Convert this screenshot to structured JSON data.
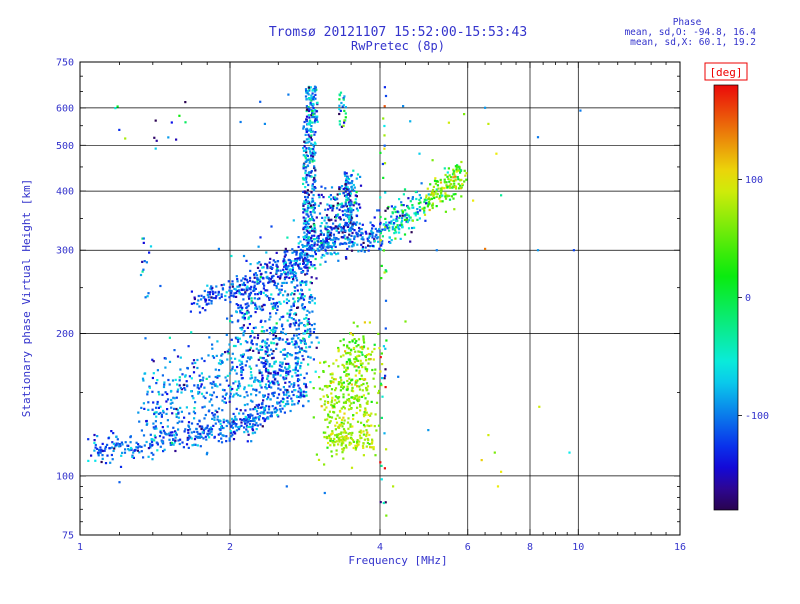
{
  "header": {
    "title": "Tromsø 20121107 15:52:00-15:53:43",
    "subtitle": "RwPretec (8p)",
    "stats_title": "Phase",
    "stats_line1": "mean, sd,O: -94.8, 16.4",
    "stats_line2": "mean, sd,X:  60.1, 19.2"
  },
  "colors": {
    "text": "#3333cc",
    "frame": "#000000",
    "deg_label": "#ee0000",
    "background": "#ffffff"
  },
  "colorbar": {
    "label": "[deg]",
    "ticks": [
      100,
      0,
      -100
    ],
    "min": -180,
    "max": 180
  },
  "chart_data": {
    "type": "scatter",
    "title": "Tromsø 20121107 15:52:00-15:53:43",
    "subtitle": "RwPretec (8p)",
    "xlabel": "Frequency [MHz]",
    "ylabel": "Stationary phase Virtual Height [km]",
    "xscale": "log",
    "yscale": "log",
    "xlim": [
      1,
      16
    ],
    "ylim": [
      75,
      750
    ],
    "x_major_ticks": [
      1,
      2,
      4,
      6,
      8,
      10,
      16
    ],
    "x_gridlines": [
      2,
      4,
      6,
      8,
      10
    ],
    "x_minor_ticks": [
      1.2,
      1.4,
      1.6,
      1.8,
      2.5,
      3,
      3.5,
      4.5,
      5,
      5.5,
      6.5,
      7,
      7.5,
      8.5,
      9,
      9.5,
      11,
      12,
      13,
      14,
      15
    ],
    "y_major_ticks": [
      75,
      100,
      200,
      300,
      400,
      500,
      600,
      750
    ],
    "y_gridlines": [
      100,
      200,
      300,
      400,
      500,
      600
    ],
    "y_minor_ticks": [
      80,
      85,
      90,
      95,
      150,
      250,
      350,
      450,
      550,
      650,
      700
    ],
    "color_variable": "phase [deg]",
    "legend": "colorbar right, rainbow, -180 to 180 deg",
    "clusters": [
      {
        "name": "e-trace-low",
        "kind": "band",
        "f1": 1.05,
        "h1": 112,
        "f2": 2.0,
        "h2": 126,
        "sf": 0.004,
        "sh": 0.015,
        "n": 260,
        "phase": -110,
        "psd": 25
      },
      {
        "name": "e-trace-high",
        "kind": "band",
        "f1": 2.0,
        "h1": 126,
        "f2": 2.85,
        "h2": 152,
        "sf": 0.004,
        "sh": 0.018,
        "n": 220,
        "phase": -105,
        "psd": 25
      },
      {
        "name": "spread-e-cloud",
        "kind": "band",
        "f1": 1.35,
        "h1": 142,
        "f2": 2.35,
        "h2": 170,
        "sf": 0.01,
        "sh": 0.05,
        "n": 380,
        "phase": -100,
        "psd": 30
      },
      {
        "name": "spread-e-cloud-2",
        "kind": "band",
        "f1": 2.3,
        "h1": 165,
        "f2": 2.95,
        "h2": 205,
        "sf": 0.008,
        "sh": 0.045,
        "n": 320,
        "phase": -100,
        "psd": 32
      },
      {
        "name": "mid-cloud",
        "kind": "band",
        "f1": 2.05,
        "h1": 215,
        "f2": 2.95,
        "h2": 275,
        "sf": 0.01,
        "sh": 0.05,
        "n": 340,
        "phase": -108,
        "psd": 35
      },
      {
        "name": "diagonal-ridge",
        "kind": "band",
        "f1": 1.68,
        "h1": 232,
        "f2": 2.55,
        "h2": 268,
        "sf": 0.004,
        "sh": 0.013,
        "n": 170,
        "phase": -118,
        "psd": 22
      },
      {
        "name": "diagonal-ridge-2",
        "kind": "band",
        "f1": 2.55,
        "h1": 268,
        "f2": 2.92,
        "h2": 300,
        "sf": 0.004,
        "sh": 0.015,
        "n": 110,
        "phase": -112,
        "psd": 25
      },
      {
        "name": "f-cusp-column",
        "kind": "column",
        "f1": 2.8,
        "f2": 2.97,
        "h1": 300,
        "h2": 560,
        "n": 270,
        "phase": -100,
        "psd": 40
      },
      {
        "name": "f-cusp-top",
        "kind": "column",
        "f1": 2.84,
        "f2": 3.0,
        "h1": 560,
        "h2": 665,
        "n": 90,
        "phase": -92,
        "psd": 45
      },
      {
        "name": "upper-cloud",
        "kind": "band",
        "f1": 3.0,
        "h1": 330,
        "f2": 3.6,
        "h2": 385,
        "sf": 0.01,
        "sh": 0.035,
        "n": 230,
        "phase": -105,
        "psd": 45
      },
      {
        "name": "upper-column",
        "kind": "column",
        "f1": 3.4,
        "f2": 3.52,
        "h1": 340,
        "h2": 435,
        "n": 80,
        "phase": -95,
        "psd": 50
      },
      {
        "name": "f-trace-flat",
        "kind": "band",
        "f1": 3.0,
        "h1": 305,
        "f2": 4.05,
        "h2": 325,
        "sf": 0.006,
        "sh": 0.016,
        "n": 190,
        "phase": -110,
        "psd": 30
      },
      {
        "name": "f-trace-rise",
        "kind": "band",
        "f1": 4.05,
        "h1": 330,
        "f2": 4.95,
        "h2": 380,
        "sf": 0.006,
        "sh": 0.02,
        "n": 150,
        "phase": -60,
        "psd": 55
      },
      {
        "name": "f-trace-rise-2",
        "kind": "band",
        "f1": 4.95,
        "h1": 380,
        "f2": 5.85,
        "h2": 430,
        "sf": 0.006,
        "sh": 0.02,
        "n": 150,
        "phase": 55,
        "psd": 35
      },
      {
        "name": "x-mode-blob",
        "kind": "band",
        "f1": 3.1,
        "h1": 140,
        "f2": 3.85,
        "h2": 150,
        "sf": 0.012,
        "sh": 0.055,
        "n": 330,
        "phase": 70,
        "psd": 22
      },
      {
        "name": "x-mode-lower-arc",
        "kind": "band",
        "f1": 3.15,
        "h1": 121,
        "f2": 3.9,
        "h2": 118,
        "sf": 0.008,
        "sh": 0.012,
        "n": 90,
        "phase": 80,
        "psd": 15
      },
      {
        "name": "x-mode-upper",
        "kind": "band",
        "f1": 3.35,
        "h1": 178,
        "f2": 3.8,
        "h2": 186,
        "sf": 0.008,
        "sh": 0.018,
        "n": 70,
        "phase": 50,
        "psd": 30
      },
      {
        "name": "column-4mhz",
        "kind": "column",
        "f1": 4.0,
        "f2": 4.12,
        "h1": 82,
        "h2": 665,
        "n": 48,
        "phase": -10,
        "psd": 110
      },
      {
        "name": "column-3p35-top",
        "kind": "column",
        "f1": 3.3,
        "f2": 3.42,
        "h1": 540,
        "h2": 655,
        "n": 26,
        "phase": -80,
        "psd": 60
      },
      {
        "name": "left-column",
        "kind": "column",
        "f1": 1.32,
        "f2": 1.4,
        "h1": 200,
        "h2": 320,
        "n": 14,
        "phase": -100,
        "psd": 40
      },
      {
        "name": "left-top-dots",
        "kind": "column",
        "f1": 1.15,
        "f2": 1.65,
        "h1": 480,
        "h2": 630,
        "n": 14,
        "phase": -60,
        "psd": 90
      }
    ],
    "sparse_points": [
      [
        6.5,
        600,
        -90
      ],
      [
        6.6,
        555,
        85
      ],
      [
        6.85,
        480,
        100
      ],
      [
        6.5,
        302,
        140
      ],
      [
        6.6,
        122,
        90
      ],
      [
        6.8,
        112,
        60
      ],
      [
        7.0,
        102,
        100
      ],
      [
        6.4,
        108,
        110
      ],
      [
        8.3,
        520,
        -100
      ],
      [
        8.35,
        140,
        90
      ],
      [
        9.8,
        300,
        -120
      ],
      [
        10.1,
        592,
        -100
      ],
      [
        9.6,
        112,
        -60
      ],
      [
        4.5,
        212,
        60
      ],
      [
        4.35,
        162,
        -100
      ],
      [
        5.0,
        125,
        -90
      ],
      [
        5.2,
        300,
        -100
      ],
      [
        5.5,
        558,
        90
      ],
      [
        5.9,
        582,
        60
      ],
      [
        4.6,
        562,
        -80
      ],
      [
        4.45,
        605,
        -95
      ],
      [
        2.62,
        640,
        -100
      ],
      [
        2.3,
        618,
        -110
      ],
      [
        6.15,
        382,
        100
      ],
      [
        5.75,
        442,
        80
      ],
      [
        7.0,
        392,
        -30
      ],
      [
        1.9,
        302,
        -100
      ],
      [
        1.45,
        252,
        -110
      ],
      [
        2.1,
        560,
        -100
      ],
      [
        2.35,
        555,
        -95
      ],
      [
        4.8,
        480,
        -70
      ],
      [
        5.1,
        465,
        60
      ],
      [
        6.9,
        95,
        100
      ],
      [
        8.3,
        300,
        -90
      ],
      [
        4.25,
        95,
        80
      ],
      [
        3.1,
        92,
        -100
      ],
      [
        2.6,
        95,
        -105
      ],
      [
        1.2,
        97,
        -110
      ]
    ]
  }
}
